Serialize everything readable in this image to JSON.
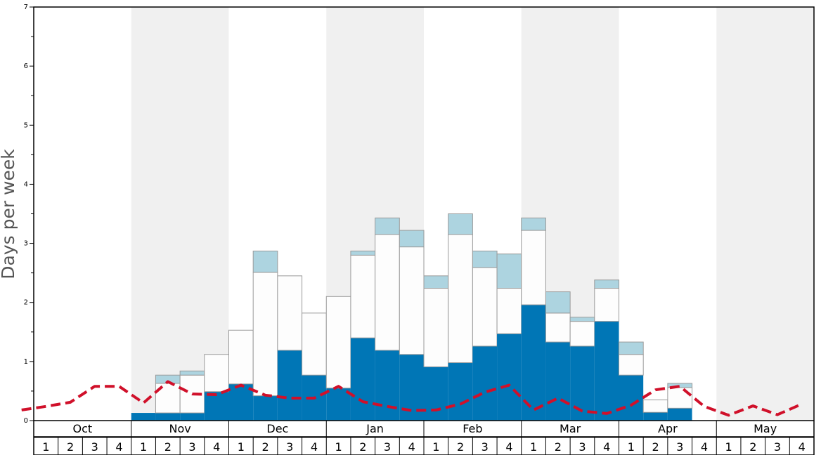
{
  "chart_data": {
    "type": "bar",
    "ylabel": "Days per week",
    "ylim": [
      0,
      7
    ],
    "yticks": [
      "0",
      "1",
      "2",
      "3",
      "4",
      "5",
      "6",
      "7"
    ],
    "months": [
      "Oct",
      "Nov",
      "Dec",
      "Jan",
      "Feb",
      "Mar",
      "Apr",
      "May"
    ],
    "week_labels": [
      "1",
      "2",
      "3",
      "4"
    ],
    "colors": {
      "dark": "#0076b6",
      "white": "#fdfdfd",
      "light": "#add4e0",
      "line": "#d0102a",
      "band": "#f0f0f0"
    },
    "series": [
      {
        "name": "",
        "values": [
          0,
          0,
          0,
          0,
          0.13,
          0.13,
          0.13,
          0.49,
          0.62,
          0.42,
          1.19,
          0.77,
          0.55,
          1.4,
          1.19,
          1.12,
          0.91,
          0.98,
          1.26,
          1.47,
          1.96,
          1.33,
          1.26,
          1.68,
          0.77,
          0.14,
          0.21,
          0,
          0,
          0,
          0,
          0
        ]
      },
      {
        "name": "",
        "values": [
          0,
          0,
          0,
          0,
          0,
          0.5,
          0.64,
          0.63,
          0.91,
          2.09,
          1.26,
          1.05,
          1.55,
          1.4,
          1.96,
          1.82,
          1.33,
          2.17,
          1.33,
          0.77,
          1.26,
          0.49,
          0.42,
          0.56,
          0.35,
          0.21,
          0.35,
          0,
          0,
          0,
          0,
          0
        ]
      },
      {
        "name": "",
        "values": [
          0,
          0,
          0,
          0,
          0,
          0.14,
          0.07,
          0,
          0,
          0.36,
          0,
          0,
          0,
          0.07,
          0.28,
          0.28,
          0.21,
          0.35,
          0.28,
          0.58,
          0.21,
          0.36,
          0.07,
          0.14,
          0.21,
          0,
          0.07,
          0,
          0,
          0,
          0,
          0
        ]
      }
    ],
    "line": [
      0.18,
      0.24,
      0.31,
      0.58,
      0.58,
      0.3,
      0.66,
      0.45,
      0.44,
      0.6,
      0.43,
      0.38,
      0.38,
      0.58,
      0.32,
      0.24,
      0.17,
      0.18,
      0.28,
      0.48,
      0.6,
      0.18,
      0.38,
      0.16,
      0.12,
      0.26,
      0.52,
      0.58,
      0.24,
      0.09,
      0.25,
      0.1,
      0.28
    ]
  }
}
